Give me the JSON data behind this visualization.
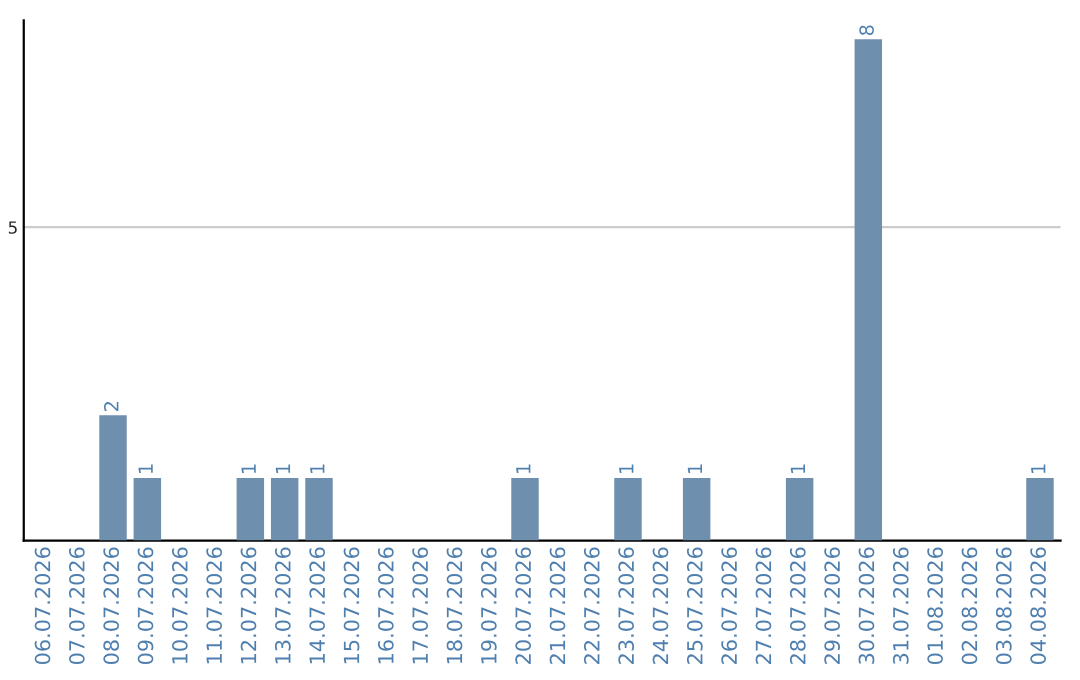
{
  "chart_data": {
    "type": "bar",
    "categories": [
      "06.07.2026",
      "07.07.2026",
      "08.07.2026",
      "09.07.2026",
      "10.07.2026",
      "11.07.2026",
      "12.07.2026",
      "13.07.2026",
      "14.07.2026",
      "15.07.2026",
      "16.07.2026",
      "17.07.2026",
      "18.07.2026",
      "19.07.2026",
      "20.07.2026",
      "21.07.2026",
      "22.07.2026",
      "23.07.2026",
      "24.07.2026",
      "25.07.2026",
      "26.07.2026",
      "27.07.2026",
      "28.07.2026",
      "29.07.2026",
      "30.07.2026",
      "31.07.2026",
      "01.08.2026",
      "02.08.2026",
      "03.08.2026",
      "04.08.2026"
    ],
    "values": [
      0,
      0,
      2,
      1,
      0,
      0,
      1,
      1,
      1,
      0,
      0,
      0,
      0,
      0,
      1,
      0,
      0,
      1,
      0,
      1,
      0,
      0,
      1,
      0,
      8,
      0,
      0,
      0,
      0,
      1
    ],
    "value_labels": [
      null,
      null,
      "2",
      "1",
      null,
      null,
      "1",
      "1",
      "1",
      null,
      null,
      null,
      null,
      null,
      "1",
      null,
      null,
      "1",
      null,
      "1",
      null,
      null,
      "1",
      null,
      "8",
      null,
      null,
      null,
      null,
      "1"
    ],
    "color": "#6f8fae",
    "ylim": [
      0,
      8.3
    ],
    "yticks": [
      5
    ],
    "grid": "y"
  }
}
